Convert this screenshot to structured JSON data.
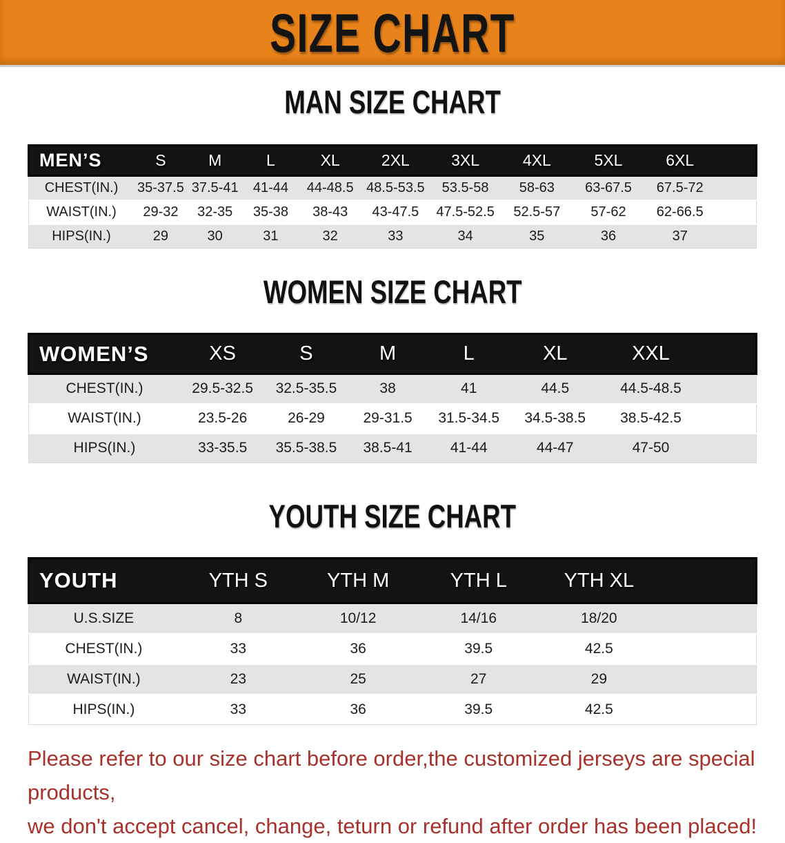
{
  "banner": {
    "title": "SIZE CHART"
  },
  "colors": {
    "banner_bg": "#E8821B",
    "header_bg": "#131313",
    "stripe": "#E4E4E6",
    "disclaimer": "#A8322B"
  },
  "man": {
    "heading": "MAN SIZE CHART",
    "table": {
      "header": [
        "MEN’S",
        "S",
        "M",
        "L",
        "XL",
        "2XL",
        "3XL",
        "4XL",
        "5XL",
        "6XL"
      ],
      "rows": [
        {
          "label": "CHEST(IN.)",
          "values": [
            "35-37.5",
            "37.5-41",
            "41-44",
            "44-48.5",
            "48.5-53.5",
            "53.5-58",
            "58-63",
            "63-67.5",
            "67.5-72"
          ]
        },
        {
          "label": "WAIST(IN.)",
          "values": [
            "29-32",
            "32-35",
            "35-38",
            "38-43",
            "43-47.5",
            "47.5-52.5",
            "52.5-57",
            "57-62",
            "62-66.5"
          ]
        },
        {
          "label": "HIPS(IN.)",
          "values": [
            "29",
            "30",
            "31",
            "32",
            "33",
            "34",
            "35",
            "36",
            "37"
          ]
        }
      ]
    }
  },
  "women": {
    "heading": "WOMEN SIZE CHART",
    "table": {
      "header": [
        "WOMEN’S",
        "XS",
        "S",
        "M",
        "L",
        "XL",
        "XXL"
      ],
      "rows": [
        {
          "label": "CHEST(IN.)",
          "values": [
            "29.5-32.5",
            "32.5-35.5",
            "38",
            "41",
            "44.5",
            "44.5-48.5"
          ]
        },
        {
          "label": "WAIST(IN.)",
          "values": [
            "23.5-26",
            "26-29",
            "29-31.5",
            "31.5-34.5",
            "34.5-38.5",
            "38.5-42.5"
          ]
        },
        {
          "label": "HIPS(IN.)",
          "values": [
            "33-35.5",
            "35.5-38.5",
            "38.5-41",
            "41-44",
            "44-47",
            "47-50"
          ]
        }
      ]
    }
  },
  "youth": {
    "heading": "YOUTH SIZE CHART",
    "table": {
      "header": [
        "YOUTH",
        "YTH S",
        "YTH M",
        "YTH L",
        "YTH XL"
      ],
      "rows": [
        {
          "label": "U.S.SIZE",
          "values": [
            "8",
            "10/12",
            "14/16",
            "18/20"
          ]
        },
        {
          "label": "CHEST(IN.)",
          "values": [
            "33",
            "36",
            "39.5",
            "42.5"
          ]
        },
        {
          "label": "WAIST(IN.)",
          "values": [
            "23",
            "25",
            "27",
            "29"
          ]
        },
        {
          "label": "HIPS(IN.)",
          "values": [
            "33",
            "36",
            "39.5",
            "42.5"
          ]
        }
      ]
    }
  },
  "disclaimer": {
    "line1": "Please refer to our size chart before order,the customized jerseys are special products,",
    "line2": "we don't accept cancel, change, teturn or refund after order has been placed!"
  }
}
